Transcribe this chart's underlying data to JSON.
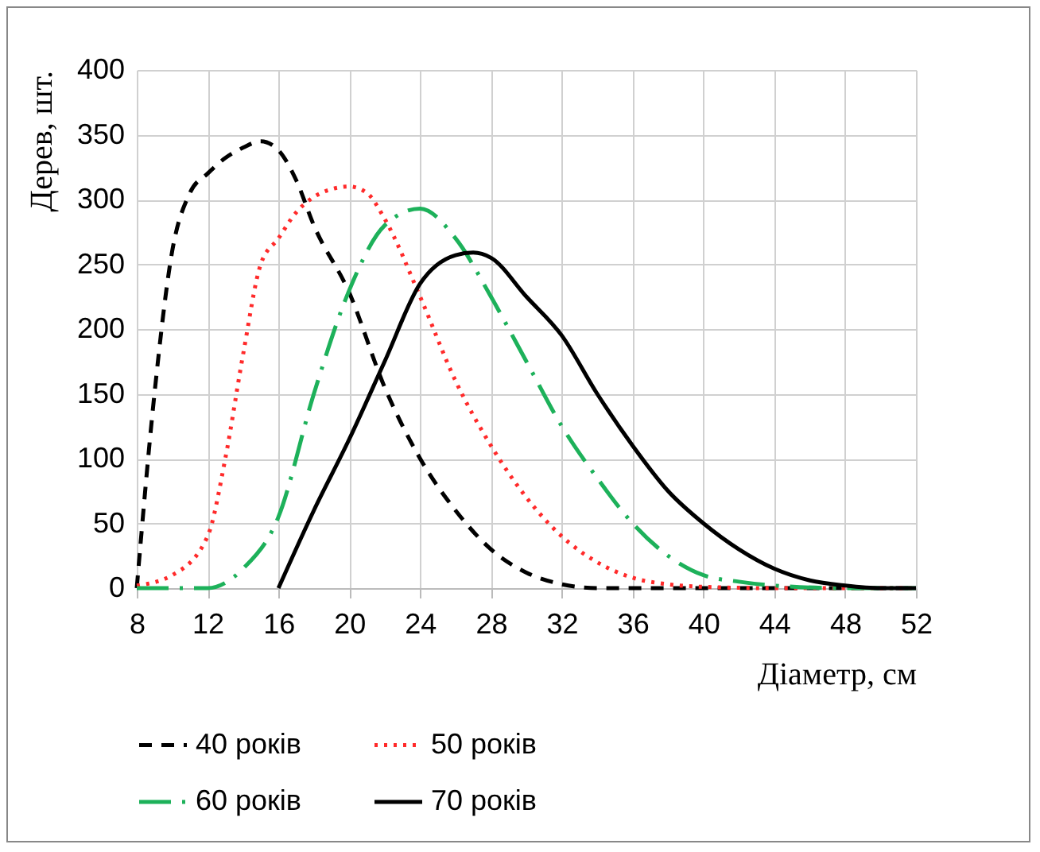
{
  "chart_data": {
    "type": "line",
    "xlabel": "Діаметр, см",
    "ylabel": "Дерев, шт.",
    "xlim": [
      8,
      52
    ],
    "xticks": [
      8,
      12,
      16,
      20,
      24,
      28,
      32,
      36,
      40,
      44,
      48,
      52
    ],
    "ylim": [
      0,
      400
    ],
    "yticks": [
      0,
      50,
      100,
      150,
      200,
      250,
      300,
      350,
      400
    ],
    "grid": true,
    "legend": "bottom",
    "marker": "none",
    "series": [
      {
        "name": "40 років",
        "color": "#000000",
        "line_style": "dashed",
        "x": [
          8,
          9,
          10,
          11,
          12,
          13,
          14,
          15,
          16,
          17,
          18,
          20,
          22,
          24,
          26,
          28,
          30,
          32,
          34,
          36,
          40,
          44,
          48,
          52
        ],
        "values": [
          0,
          150,
          260,
          305,
          320,
          332,
          340,
          345,
          338,
          315,
          280,
          228,
          155,
          100,
          60,
          30,
          12,
          3,
          0,
          0,
          0,
          0,
          0,
          0
        ]
      },
      {
        "name": "50 років",
        "color": "#ff2a2a",
        "line_style": "dotted",
        "x": [
          8,
          10,
          12,
          13,
          14,
          15,
          16,
          17,
          18,
          19,
          20,
          21,
          22,
          24,
          26,
          28,
          30,
          32,
          34,
          36,
          38,
          40,
          44,
          48,
          52
        ],
        "values": [
          2,
          10,
          40,
          100,
          180,
          250,
          270,
          290,
          302,
          308,
          310,
          305,
          285,
          225,
          160,
          110,
          70,
          40,
          20,
          8,
          3,
          1,
          0,
          0,
          0
        ]
      },
      {
        "name": "60 років",
        "color": "#1db15a",
        "line_style": "dashdot",
        "x": [
          8,
          12,
          14,
          16,
          18,
          20,
          22,
          24,
          26,
          28,
          30,
          32,
          34,
          36,
          38,
          40,
          42,
          44,
          48,
          52
        ],
        "values": [
          0,
          0,
          15,
          55,
          150,
          230,
          280,
          293,
          270,
          225,
          175,
          125,
          85,
          50,
          25,
          10,
          5,
          2,
          0,
          0
        ]
      },
      {
        "name": "70 років",
        "color": "#000000",
        "line_style": "solid",
        "x": [
          16,
          18,
          20,
          22,
          24,
          26,
          27,
          28,
          30,
          32,
          34,
          36,
          38,
          40,
          42,
          44,
          46,
          48,
          50,
          52
        ],
        "values": [
          0,
          60,
          115,
          175,
          235,
          257,
          259,
          255,
          225,
          195,
          150,
          110,
          75,
          50,
          30,
          15,
          6,
          2,
          0,
          0
        ]
      }
    ]
  }
}
